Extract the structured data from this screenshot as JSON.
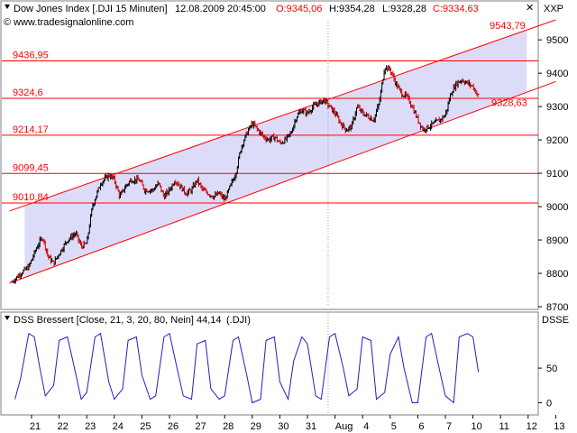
{
  "header": {
    "instrument": "Dow Jones Index [.DJI  15 Minuten]",
    "datetime": "12.08.2009 20:45:00",
    "open": "O:9345,06",
    "high": "H:9354,28",
    "low": "L:9328,28",
    "close": "C:9334,63",
    "watermark": "© www.tradesignalonline.com",
    "symbol_label": "XXP"
  },
  "indicator_header": {
    "title": "DSS Bressert [Close, 21, 3, 20, 80, Nein]",
    "value": "44,14",
    "symbol": "(.DJI)",
    "axis_label": "DSSE"
  },
  "chart_data": [
    {
      "type": "line",
      "subtype": "ohlc-bars",
      "ylim": [
        8700,
        9560
      ],
      "yticks": [
        8700,
        8800,
        8900,
        9000,
        9100,
        9200,
        9300,
        9400,
        9500
      ],
      "x_tick_labels": [
        "21",
        "22",
        "23",
        "24",
        "25",
        "26",
        "27",
        "28",
        "29",
        "30",
        "31",
        "Aug",
        "4",
        "5",
        "6",
        "7",
        "10",
        "11",
        "12",
        "13"
      ],
      "x_tick_days": [
        0,
        1,
        2,
        3,
        4,
        5,
        6,
        7,
        8,
        9,
        10,
        11,
        12,
        13,
        14,
        15,
        16,
        17,
        18,
        19
      ],
      "grid": false,
      "bar_up_color": "#000000",
      "bar_down_color": "#cc0000",
      "channel_fill": "#dcdcf8",
      "channel_line_color": "#ff0000",
      "channel": {
        "upper": [
          [
            0,
            9010
          ],
          [
            19,
            9560
          ]
        ],
        "lower": [
          [
            0,
            8795
          ],
          [
            19,
            9375
          ]
        ]
      },
      "horizontal_levels": [
        {
          "value": 9436.95,
          "label": "9436,95"
        },
        {
          "value": 9324.6,
          "label": "9324,6"
        },
        {
          "value": 9214.17,
          "label": "9214,17"
        },
        {
          "value": 9099.45,
          "label": "9099,45"
        },
        {
          "value": 9010.84,
          "label": "9010,84"
        }
      ],
      "annotations": [
        {
          "value": 9543.79,
          "label": "9543,79"
        },
        {
          "value": 9328.63,
          "label": "9328,63"
        }
      ],
      "price_path": [
        [
          -0.7,
          8775
        ],
        [
          -0.4,
          8800
        ],
        [
          -0.1,
          8820
        ],
        [
          0.2,
          8880
        ],
        [
          0.4,
          8910
        ],
        [
          0.6,
          8850
        ],
        [
          0.8,
          8830
        ],
        [
          1.0,
          8860
        ],
        [
          1.3,
          8900
        ],
        [
          1.6,
          8920
        ],
        [
          1.8,
          8880
        ],
        [
          2.0,
          8890
        ],
        [
          2.2,
          9000
        ],
        [
          2.5,
          9070
        ],
        [
          2.8,
          9095
        ],
        [
          3.0,
          9080
        ],
        [
          3.2,
          9030
        ],
        [
          3.4,
          9060
        ],
        [
          3.6,
          9080
        ],
        [
          3.9,
          9080
        ],
        [
          4.1,
          9050
        ],
        [
          4.4,
          9050
        ],
        [
          4.6,
          9070
        ],
        [
          4.8,
          9030
        ],
        [
          5.0,
          9050
        ],
        [
          5.2,
          9080
        ],
        [
          5.4,
          9060
        ],
        [
          5.6,
          9040
        ],
        [
          5.8,
          9050
        ],
        [
          6.0,
          9080
        ],
        [
          6.2,
          9050
        ],
        [
          6.4,
          9040
        ],
        [
          6.6,
          9030
        ],
        [
          6.8,
          9040
        ],
        [
          7.0,
          9020
        ],
        [
          7.2,
          9060
        ],
        [
          7.4,
          9100
        ],
        [
          7.6,
          9180
        ],
        [
          7.8,
          9220
        ],
        [
          8.0,
          9250
        ],
        [
          8.2,
          9230
        ],
        [
          8.4,
          9210
        ],
        [
          8.6,
          9200
        ],
        [
          8.8,
          9210
        ],
        [
          9.0,
          9190
        ],
        [
          9.2,
          9200
        ],
        [
          9.4,
          9220
        ],
        [
          9.6,
          9270
        ],
        [
          9.8,
          9290
        ],
        [
          10.0,
          9280
        ],
        [
          10.2,
          9300
        ],
        [
          10.4,
          9310
        ],
        [
          10.6,
          9320
        ],
        [
          10.8,
          9300
        ],
        [
          11.0,
          9280
        ],
        [
          11.2,
          9250
        ],
        [
          11.4,
          9230
        ],
        [
          11.6,
          9240
        ],
        [
          11.8,
          9300
        ],
        [
          12.0,
          9280
        ],
        [
          12.2,
          9270
        ],
        [
          12.4,
          9260
        ],
        [
          12.6,
          9310
        ],
        [
          12.8,
          9420
        ],
        [
          13.0,
          9410
        ],
        [
          13.2,
          9370
        ],
        [
          13.4,
          9340
        ],
        [
          13.6,
          9330
        ],
        [
          13.8,
          9300
        ],
        [
          14.0,
          9260
        ],
        [
          14.2,
          9230
        ],
        [
          14.4,
          9240
        ],
        [
          14.6,
          9250
        ],
        [
          14.8,
          9260
        ],
        [
          15.0,
          9275
        ],
        [
          15.2,
          9340
        ],
        [
          15.4,
          9370
        ],
        [
          15.6,
          9380
        ],
        [
          15.8,
          9370
        ],
        [
          16.0,
          9360
        ],
        [
          16.2,
          9330
        ]
      ]
    },
    {
      "type": "line",
      "ylim": [
        -15,
        110
      ],
      "yticks": [
        0,
        50
      ],
      "series": [
        {
          "color": "#2020c0",
          "x": [
            -0.6,
            -0.4,
            -0.1,
            0.1,
            0.3,
            0.5,
            0.8,
            1.0,
            1.3,
            1.5,
            1.8,
            2.0,
            2.3,
            2.5,
            2.8,
            3.0,
            3.3,
            3.5,
            3.8,
            4.0,
            4.3,
            4.5,
            4.8,
            5.0,
            5.3,
            5.5,
            5.8,
            6.0,
            6.3,
            6.5,
            6.8,
            7.0,
            7.3,
            7.5,
            7.8,
            8.0,
            8.3,
            8.5,
            8.8,
            9.0,
            9.3,
            9.5,
            9.8,
            10.0,
            10.3,
            10.5,
            10.8,
            11.0,
            11.3,
            11.5,
            11.8,
            12.0,
            12.3,
            12.5,
            12.8,
            13.0,
            13.3,
            13.5,
            13.8,
            14.0,
            14.3,
            14.5,
            14.8,
            15.0,
            15.3,
            15.5,
            15.8,
            16.0,
            16.2
          ],
          "values": [
            5,
            35,
            100,
            95,
            50,
            10,
            25,
            90,
            95,
            60,
            5,
            15,
            95,
            100,
            30,
            5,
            20,
            90,
            95,
            40,
            5,
            10,
            95,
            100,
            45,
            10,
            5,
            85,
            90,
            20,
            5,
            10,
            90,
            95,
            40,
            0,
            5,
            90,
            95,
            30,
            5,
            60,
            95,
            85,
            10,
            5,
            95,
            100,
            50,
            10,
            20,
            95,
            90,
            5,
            15,
            70,
            95,
            50,
            0,
            0,
            95,
            100,
            45,
            10,
            0,
            95,
            100,
            95,
            44
          ]
        }
      ]
    }
  ]
}
